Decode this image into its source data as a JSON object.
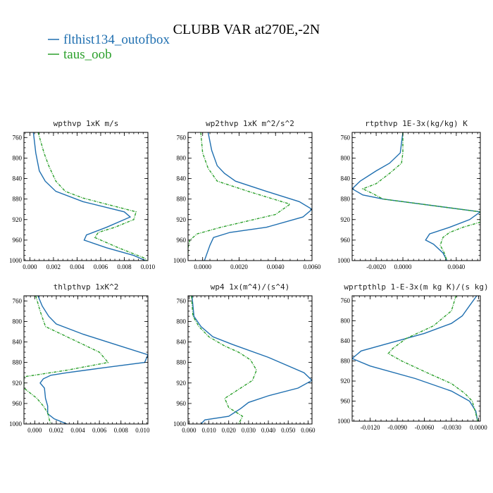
{
  "figure": {
    "title": "CLUBB VAR at270E,-2N",
    "legend": [
      {
        "label": "flthist134_outofbox",
        "color": "#1f6fb0"
      },
      {
        "label": "taus_oob",
        "color": "#2ca02c"
      }
    ]
  },
  "chart_data": [
    {
      "type": "line",
      "title": "wpthvp  1xK m/s",
      "xlim": [
        -0.0005,
        0.01
      ],
      "ylim": [
        1000,
        750
      ],
      "xticks": [
        0.0,
        0.002,
        0.004,
        0.006,
        0.008,
        0.01
      ],
      "xtick_labels": [
        "0.000",
        "0.002",
        "0.004",
        "0.006",
        "0.008",
        "0.010"
      ],
      "yticks": [
        760,
        800,
        840,
        880,
        920,
        960,
        1000
      ],
      "ytick_labels": [
        "760",
        "800",
        "840",
        "880",
        "920",
        "960",
        "1000"
      ],
      "series": [
        {
          "name": "flthist134_outofbox",
          "color": "#1f6fb0",
          "dashed": false,
          "points": [
            [
              0.0003,
              750
            ],
            [
              0.0005,
              790
            ],
            [
              0.0008,
              825
            ],
            [
              0.0013,
              845
            ],
            [
              0.0022,
              865
            ],
            [
              0.0045,
              885
            ],
            [
              0.008,
              905
            ],
            [
              0.0085,
              915
            ],
            [
              0.0065,
              935
            ],
            [
              0.0048,
              950
            ],
            [
              0.0046,
              960
            ],
            [
              0.0065,
              975
            ],
            [
              0.0088,
              990
            ],
            [
              0.0098,
              1000
            ]
          ]
        },
        {
          "name": "taus_oob",
          "color": "#2ca02c",
          "dashed": true,
          "points": [
            [
              0.0007,
              750
            ],
            [
              0.0012,
              790
            ],
            [
              0.0016,
              815
            ],
            [
              0.0022,
              845
            ],
            [
              0.003,
              865
            ],
            [
              0.0045,
              878
            ],
            [
              0.0065,
              890
            ],
            [
              0.009,
              905
            ],
            [
              0.0088,
              920
            ],
            [
              0.0072,
              935
            ],
            [
              0.0058,
              945
            ],
            [
              0.0055,
              955
            ],
            [
              0.0075,
              975
            ],
            [
              0.0097,
              995
            ],
            [
              0.0099,
              1000
            ]
          ]
        }
      ]
    },
    {
      "type": "line",
      "title": "wp2thvp  1xK m^2/s^2",
      "xlim": [
        -0.0008,
        0.006
      ],
      "ylim": [
        1000,
        750
      ],
      "xticks": [
        0.0,
        0.002,
        0.004,
        0.006
      ],
      "xtick_labels": [
        "0.0000",
        "0.0020",
        "0.0040",
        "0.0060"
      ],
      "yticks": [
        760,
        800,
        840,
        880,
        920,
        960,
        1000
      ],
      "ytick_labels": [
        "760",
        "800",
        "840",
        "880",
        "920",
        "960",
        "1000"
      ],
      "series": [
        {
          "name": "flthist134_outofbox",
          "color": "#1f6fb0",
          "dashed": false,
          "points": [
            [
              0.0003,
              750
            ],
            [
              0.0005,
              785
            ],
            [
              0.0008,
              815
            ],
            [
              0.0012,
              830
            ],
            [
              0.0018,
              845
            ],
            [
              0.0035,
              865
            ],
            [
              0.0053,
              885
            ],
            [
              0.006,
              900
            ],
            [
              0.0055,
              915
            ],
            [
              0.0035,
              935
            ],
            [
              0.0015,
              945
            ],
            [
              0.0006,
              955
            ],
            [
              0.0004,
              970
            ],
            [
              0.0002,
              990
            ],
            [
              0.0001,
              1000
            ]
          ]
        },
        {
          "name": "taus_oob",
          "color": "#2ca02c",
          "dashed": true,
          "points": [
            [
              -0.0001,
              750
            ],
            [
              0.0,
              790
            ],
            [
              0.0003,
              820
            ],
            [
              0.0008,
              845
            ],
            [
              0.0025,
              865
            ],
            [
              0.0048,
              890
            ],
            [
              0.004,
              910
            ],
            [
              0.001,
              935
            ],
            [
              -0.0003,
              948
            ],
            [
              -0.0007,
              960
            ],
            [
              -0.0008,
              975
            ],
            [
              -0.0008,
              985
            ]
          ]
        }
      ]
    },
    {
      "type": "line",
      "title": "rtpthvp  1E-3x(kg/kg) K",
      "xlim": [
        -0.0038,
        0.0058
      ],
      "ylim": [
        1000,
        750
      ],
      "xticks": [
        -0.002,
        0.0,
        0.004
      ],
      "xtick_labels": [
        "-0.0020",
        "0.0000",
        "0.0040"
      ],
      "yticks": [
        760,
        800,
        840,
        880,
        920,
        960,
        1000
      ],
      "ytick_labels": [
        "760",
        "800",
        "840",
        "880",
        "920",
        "960",
        "1000"
      ],
      "series": [
        {
          "name": "flthist134_outofbox",
          "color": "#1f6fb0",
          "dashed": false,
          "points": [
            [
              0.0,
              750
            ],
            [
              -0.0002,
              790
            ],
            [
              -0.001,
              810
            ],
            [
              -0.002,
              825
            ],
            [
              -0.0032,
              845
            ],
            [
              -0.0038,
              860
            ],
            [
              -0.003,
              872
            ],
            [
              -0.0015,
              880
            ],
            [
              0.0058,
              905
            ],
            [
              0.005,
              920
            ],
            [
              0.0035,
              935
            ],
            [
              0.002,
              948
            ],
            [
              0.0017,
              960
            ],
            [
              0.0023,
              968
            ],
            [
              0.003,
              985
            ],
            [
              0.0033,
              1000
            ]
          ]
        },
        {
          "name": "taus_oob",
          "color": "#2ca02c",
          "dashed": true,
          "points": [
            [
              0.0,
              750
            ],
            [
              0.0,
              790
            ],
            [
              -0.0001,
              810
            ],
            [
              -0.001,
              830
            ],
            [
              -0.002,
              850
            ],
            [
              -0.003,
              860
            ],
            [
              -0.0022,
              870
            ],
            [
              -0.0015,
              880
            ],
            [
              0.0058,
              905
            ],
            [
              0.0058,
              925
            ],
            [
              0.0045,
              935
            ],
            [
              0.0035,
              945
            ],
            [
              0.003,
              955
            ],
            [
              0.0028,
              970
            ],
            [
              0.0031,
              985
            ],
            [
              0.0033,
              1000
            ]
          ]
        }
      ]
    },
    {
      "type": "line",
      "title": "thlpthvp  1xK^2",
      "xlim": [
        -0.001,
        0.0105
      ],
      "ylim": [
        1000,
        750
      ],
      "xticks": [
        0.0,
        0.002,
        0.004,
        0.006,
        0.008,
        0.01
      ],
      "xtick_labels": [
        "0.000",
        "0.002",
        "0.004",
        "0.006",
        "0.008",
        "0.010"
      ],
      "yticks": [
        760,
        800,
        840,
        880,
        920,
        960,
        1000
      ],
      "ytick_labels": [
        "760",
        "800",
        "840",
        "880",
        "920",
        "960",
        "1000"
      ],
      "series": [
        {
          "name": "flthist134_outofbox",
          "color": "#1f6fb0",
          "dashed": false,
          "points": [
            [
              0.0003,
              750
            ],
            [
              0.0007,
              770
            ],
            [
              0.0013,
              790
            ],
            [
              0.002,
              805
            ],
            [
              0.0045,
              825
            ],
            [
              0.0075,
              845
            ],
            [
              0.0105,
              865
            ],
            [
              0.0102,
              880
            ],
            [
              0.0065,
              890
            ],
            [
              0.003,
              900
            ],
            [
              0.0015,
              905
            ],
            [
              0.0008,
              912
            ],
            [
              0.0005,
              920
            ],
            [
              0.0009,
              930
            ],
            [
              0.001,
              950
            ],
            [
              0.0012,
              965
            ],
            [
              0.0012,
              980
            ],
            [
              0.0018,
              990
            ],
            [
              0.003,
              1000
            ]
          ]
        },
        {
          "name": "taus_oob",
          "color": "#2ca02c",
          "dashed": true,
          "points": [
            [
              0.0001,
              750
            ],
            [
              0.0005,
              780
            ],
            [
              0.001,
              810
            ],
            [
              0.0035,
              835
            ],
            [
              0.006,
              860
            ],
            [
              0.0068,
              880
            ],
            [
              0.003,
              895
            ],
            [
              -0.001,
              908
            ],
            [
              -0.001,
              930
            ],
            [
              0.0002,
              950
            ],
            [
              0.0008,
              965
            ],
            [
              0.0012,
              978
            ],
            [
              0.0014,
              995
            ],
            [
              0.0015,
              1000
            ]
          ]
        }
      ]
    },
    {
      "type": "line",
      "title": "wp4  1x(m^4)/(s^4)",
      "xlim": [
        -0.0005,
        0.062
      ],
      "ylim": [
        1000,
        750
      ],
      "xticks": [
        0.0,
        0.01,
        0.02,
        0.03,
        0.04,
        0.05,
        0.06
      ],
      "xtick_labels": [
        "0.000",
        "0.010",
        "0.020",
        "0.030",
        "0.040",
        "0.050",
        "0.060"
      ],
      "yticks": [
        760,
        800,
        840,
        880,
        920,
        960,
        1000
      ],
      "ytick_labels": [
        "760",
        "800",
        "840",
        "880",
        "920",
        "960",
        "1000"
      ],
      "series": [
        {
          "name": "flthist134_outofbox",
          "color": "#1f6fb0",
          "dashed": false,
          "points": [
            [
              0.0015,
              750
            ],
            [
              0.0025,
              790
            ],
            [
              0.006,
              810
            ],
            [
              0.012,
              830
            ],
            [
              0.022,
              845
            ],
            [
              0.04,
              870
            ],
            [
              0.058,
              900
            ],
            [
              0.062,
              915
            ],
            [
              0.055,
              930
            ],
            [
              0.04,
              945
            ],
            [
              0.03,
              958
            ],
            [
              0.026,
              970
            ],
            [
              0.02,
              985
            ],
            [
              0.008,
              992
            ],
            [
              0.006,
              1000
            ]
          ]
        },
        {
          "name": "taus_oob",
          "color": "#2ca02c",
          "dashed": true,
          "points": [
            [
              0.0012,
              750
            ],
            [
              0.002,
              790
            ],
            [
              0.005,
              810
            ],
            [
              0.01,
              830
            ],
            [
              0.018,
              848
            ],
            [
              0.025,
              860
            ],
            [
              0.031,
              875
            ],
            [
              0.034,
              895
            ],
            [
              0.032,
              915
            ],
            [
              0.024,
              935
            ],
            [
              0.018,
              950
            ],
            [
              0.02,
              968
            ],
            [
              0.027,
              985
            ],
            [
              0.025,
              1000
            ]
          ]
        }
      ]
    },
    {
      "type": "line",
      "title": "wprtpthlp  1-E-3x(m kg K)/(s kg)",
      "xlim": [
        -0.014,
        0.0002
      ],
      "ylim": [
        1000,
        750
      ],
      "xticks": [
        -0.012,
        -0.009,
        -0.006,
        -0.003,
        0.0
      ],
      "xtick_labels": [
        "-0.0120",
        "-0.0090",
        "-0.0060",
        "-0.0030",
        "0.0000"
      ],
      "yticks": [
        760,
        800,
        840,
        880,
        920,
        960,
        1000
      ],
      "ytick_labels": [
        "760",
        "800",
        "840",
        "880",
        "920",
        "960",
        "1000"
      ],
      "series": [
        {
          "name": "flthist134_outofbox",
          "color": "#1f6fb0",
          "dashed": false,
          "points": [
            [
              -0.0002,
              750
            ],
            [
              -0.001,
              770
            ],
            [
              -0.0018,
              790
            ],
            [
              -0.003,
              805
            ],
            [
              -0.006,
              825
            ],
            [
              -0.009,
              840
            ],
            [
              -0.013,
              860
            ],
            [
              -0.014,
              875
            ],
            [
              -0.012,
              890
            ],
            [
              -0.007,
              915
            ],
            [
              -0.003,
              940
            ],
            [
              -0.001,
              960
            ],
            [
              -0.0003,
              980
            ],
            [
              -0.0001,
              1000
            ]
          ]
        },
        {
          "name": "taus_oob",
          "color": "#2ca02c",
          "dashed": true,
          "points": [
            [
              -0.0025,
              750
            ],
            [
              -0.003,
              780
            ],
            [
              -0.005,
              810
            ],
            [
              -0.008,
              835
            ],
            [
              -0.0095,
              855
            ],
            [
              -0.01,
              865
            ],
            [
              -0.0085,
              880
            ],
            [
              -0.0055,
              905
            ],
            [
              -0.003,
              925
            ],
            [
              -0.0015,
              945
            ],
            [
              -0.0007,
              960
            ],
            [
              -0.0003,
              985
            ],
            [
              -0.0001,
              1000
            ]
          ]
        }
      ]
    }
  ]
}
